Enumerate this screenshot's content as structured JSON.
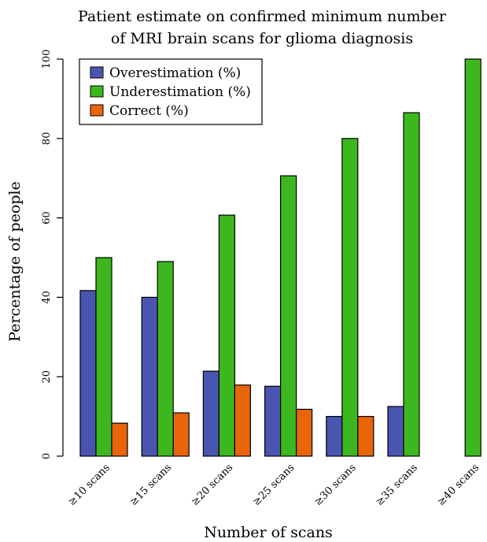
{
  "chart_data": {
    "type": "bar",
    "title_line1": "Patient estimate on confirmed minimum number",
    "title_line2": "of MRI brain scans for glioma diagnosis",
    "xlabel": "Number of scans",
    "ylabel": "Percentage of people",
    "categories": [
      "≥10 scans",
      "≥15 scans",
      "≥20 scans",
      "≥25 scans",
      "≥30 scans",
      "≥35 scans",
      "≥40 scans"
    ],
    "series": [
      {
        "name": "Overestimation (%)",
        "color": "#4a55b0",
        "values": [
          41.7,
          40.0,
          21.4,
          17.6,
          10.0,
          12.5,
          0
        ]
      },
      {
        "name": "Underestimation (%)",
        "color": "#3cb81e",
        "values": [
          50.0,
          49.0,
          60.7,
          70.6,
          80.0,
          86.5,
          100
        ]
      },
      {
        "name": "Correct (%)",
        "color": "#e8650a",
        "values": [
          8.3,
          10.9,
          17.9,
          11.8,
          10.0,
          0,
          0
        ]
      }
    ],
    "ylim": [
      0,
      100
    ],
    "yticks": [
      0,
      20,
      40,
      60,
      80,
      100
    ],
    "legend_position": "top-left",
    "grid": false
  }
}
